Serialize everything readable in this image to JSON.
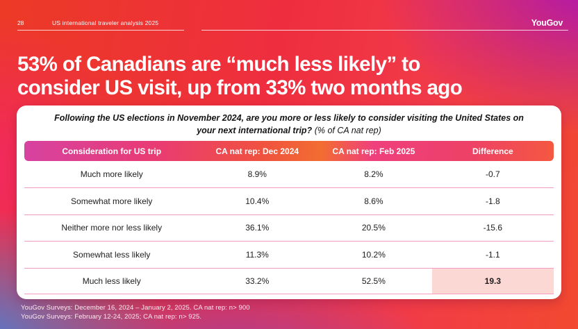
{
  "topbar": {
    "page_number": "28",
    "report_title": "US international traveler analysis 2025",
    "brand": "YouGov"
  },
  "headline": {
    "line1": "53% of Canadians are “much less likely” to",
    "line2": "consider US visit, up from 33% two months ago"
  },
  "question": {
    "main": "Following the US elections in November 2024, are you more or less likely to consider visiting the United States on your next international trip?",
    "note": "(% of CA nat rep)"
  },
  "chart_data": {
    "type": "table",
    "title": "Following the US elections in November 2024, are you more or less likely to consider visiting the United States on your next international trip? (% of CA nat rep)",
    "columns": {
      "c1": "Consideration for US trip",
      "c2": "CA nat rep: Dec 2024",
      "c3": "CA nat rep: Feb 2025",
      "c4": "Difference"
    },
    "rows": [
      {
        "label": "Much more likely",
        "dec2024": "8.9%",
        "feb2025": "8.2%",
        "difference": "-0.7",
        "highlighted": false
      },
      {
        "label": "Somewhat more likely",
        "dec2024": "10.4%",
        "feb2025": "8.6%",
        "difference": "-1.8",
        "highlighted": false
      },
      {
        "label": "Neither more nor less likely",
        "dec2024": "36.1%",
        "feb2025": "20.5%",
        "difference": "-15.6",
        "highlighted": false
      },
      {
        "label": "Somewhat less likely",
        "dec2024": "11.3%",
        "feb2025": "10.2%",
        "difference": "-1.1",
        "highlighted": false
      },
      {
        "label": "Much less likely",
        "dec2024": "33.2%",
        "feb2025": "52.5%",
        "difference": "19.3",
        "highlighted": true
      }
    ]
  },
  "footer": {
    "line1": "YouGov Surveys: December 16, 2024 – January 2, 2025. CA nat rep: n> 900",
    "line2": "YouGov Surveys: February 12-24, 2025; CA nat rep: n> 925."
  },
  "colors": {
    "background_red": "#ee3130",
    "background_purple": "#ab14b5",
    "background_blue": "#477fdd",
    "header_gradient_left": "#d743a1",
    "header_gradient_orange": "#f26d31",
    "header_gradient_right": "#f45840",
    "row_divider": "#f59bc2",
    "highlight_cell": "#fbd8d3"
  }
}
